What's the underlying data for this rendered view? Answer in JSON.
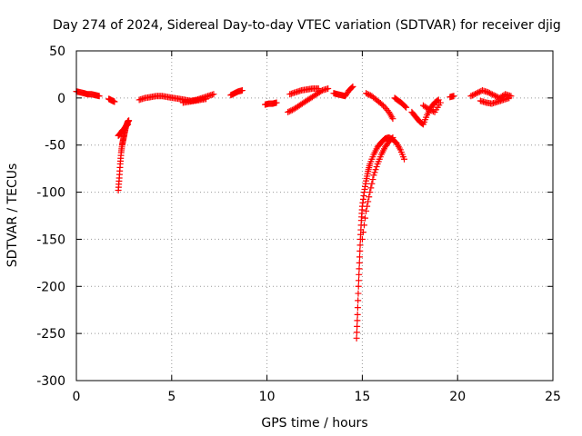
{
  "chart_data": {
    "type": "scatter",
    "title": "Day 274 of 2024, Sidereal Day-to-day VTEC variation (SDTVAR) for receiver djig",
    "xlabel": "GPS time / hours",
    "ylabel": "SDTVAR / TECUs",
    "xlim": [
      0,
      25
    ],
    "ylim": [
      -300,
      50
    ],
    "xticks": [
      0,
      5,
      10,
      15,
      20,
      25
    ],
    "yticks": [
      -300,
      -250,
      -200,
      -150,
      -100,
      -50,
      0,
      50
    ],
    "grid": true,
    "marker": "+",
    "color": "#ff0000",
    "segments": [
      {
        "x": [
          0.0,
          0.2,
          0.4,
          0.6,
          0.8,
          1.0,
          1.2
        ],
        "y": [
          7,
          6,
          5,
          4,
          4,
          3,
          2
        ]
      },
      {
        "x": [
          1.7,
          1.8,
          1.9,
          2.0
        ],
        "y": [
          -1,
          -2,
          -3,
          -4
        ]
      },
      {
        "x": [
          2.2,
          2.25,
          2.3,
          2.35,
          2.4,
          2.45,
          2.5,
          2.55,
          2.6,
          2.65,
          2.7,
          2.75
        ],
        "y": [
          -98,
          -85,
          -70,
          -58,
          -50,
          -45,
          -40,
          -35,
          -30,
          -28,
          -25,
          -24
        ]
      },
      {
        "x": [
          2.2,
          2.3,
          2.4,
          2.5,
          2.6,
          2.7
        ],
        "y": [
          -40,
          -38,
          -35,
          -33,
          -30,
          -28
        ]
      },
      {
        "x": [
          3.3,
          3.6,
          3.9,
          4.2,
          4.5,
          4.8,
          5.1,
          5.4,
          5.7,
          6.0,
          6.3,
          6.6,
          6.9,
          7.2
        ],
        "y": [
          -2,
          0,
          1,
          2,
          2,
          1,
          0,
          -1,
          -2,
          -3,
          -2,
          0,
          2,
          4
        ]
      },
      {
        "x": [
          5.6,
          5.9,
          6.2,
          6.5,
          6.8
        ],
        "y": [
          -5,
          -4,
          -3,
          -2,
          -1
        ]
      },
      {
        "x": [
          8.1,
          8.3,
          8.5,
          8.7
        ],
        "y": [
          3,
          5,
          7,
          8
        ]
      },
      {
        "x": [
          9.9,
          10.1,
          10.3,
          10.5
        ],
        "y": [
          -7,
          -6,
          -6,
          -5
        ]
      },
      {
        "x": [
          11.1,
          11.4,
          11.7,
          12.0,
          12.3,
          12.6,
          12.9,
          13.2
        ],
        "y": [
          -15,
          -12,
          -8,
          -4,
          0,
          4,
          8,
          10
        ]
      },
      {
        "x": [
          11.2,
          11.5,
          11.8,
          12.1,
          12.4,
          12.7
        ],
        "y": [
          4,
          6,
          8,
          9,
          10,
          10
        ]
      },
      {
        "x": [
          13.5,
          13.7,
          13.9,
          14.1,
          14.3,
          14.5
        ],
        "y": [
          5,
          4,
          3,
          2,
          8,
          12
        ]
      },
      {
        "x": [
          14.7,
          14.75,
          14.8,
          14.85,
          14.9,
          14.95,
          15.0,
          15.1,
          15.2,
          15.3,
          15.4,
          15.6,
          15.8,
          16.0,
          16.2,
          16.4,
          16.6,
          16.8,
          17.0,
          17.2
        ],
        "y": [
          -255,
          -230,
          -200,
          -175,
          -150,
          -130,
          -115,
          -100,
          -88,
          -78,
          -70,
          -60,
          -52,
          -47,
          -43,
          -42,
          -44,
          -48,
          -55,
          -65
        ]
      },
      {
        "x": [
          15.0,
          15.2,
          15.4,
          15.6,
          15.8,
          16.0,
          16.2,
          16.4,
          16.6
        ],
        "y": [
          -150,
          -120,
          -100,
          -82,
          -70,
          -60,
          -52,
          -46,
          -42
        ]
      },
      {
        "x": [
          15.2,
          15.5,
          15.8,
          16.1,
          16.4,
          16.6
        ],
        "y": [
          5,
          2,
          -3,
          -8,
          -15,
          -22
        ]
      },
      {
        "x": [
          16.7,
          16.9,
          17.1,
          17.3
        ],
        "y": [
          0,
          -3,
          -6,
          -10
        ]
      },
      {
        "x": [
          17.6,
          17.8,
          18.0,
          18.2,
          18.4,
          18.6,
          18.8,
          19.0
        ],
        "y": [
          -15,
          -20,
          -25,
          -28,
          -18,
          -10,
          -5,
          -2
        ]
      },
      {
        "x": [
          18.2,
          18.5,
          18.8,
          19.1
        ],
        "y": [
          -8,
          -12,
          -15,
          -5
        ]
      },
      {
        "x": [
          19.6,
          19.8
        ],
        "y": [
          1,
          2
        ]
      },
      {
        "x": [
          20.7,
          21.0,
          21.3,
          21.6,
          21.9,
          22.2,
          22.5,
          22.8
        ],
        "y": [
          2,
          5,
          8,
          6,
          3,
          0,
          4,
          2
        ]
      },
      {
        "x": [
          21.2,
          21.5,
          21.8,
          22.1,
          22.4,
          22.7
        ],
        "y": [
          -3,
          -5,
          -6,
          -4,
          -2,
          0
        ]
      }
    ]
  }
}
